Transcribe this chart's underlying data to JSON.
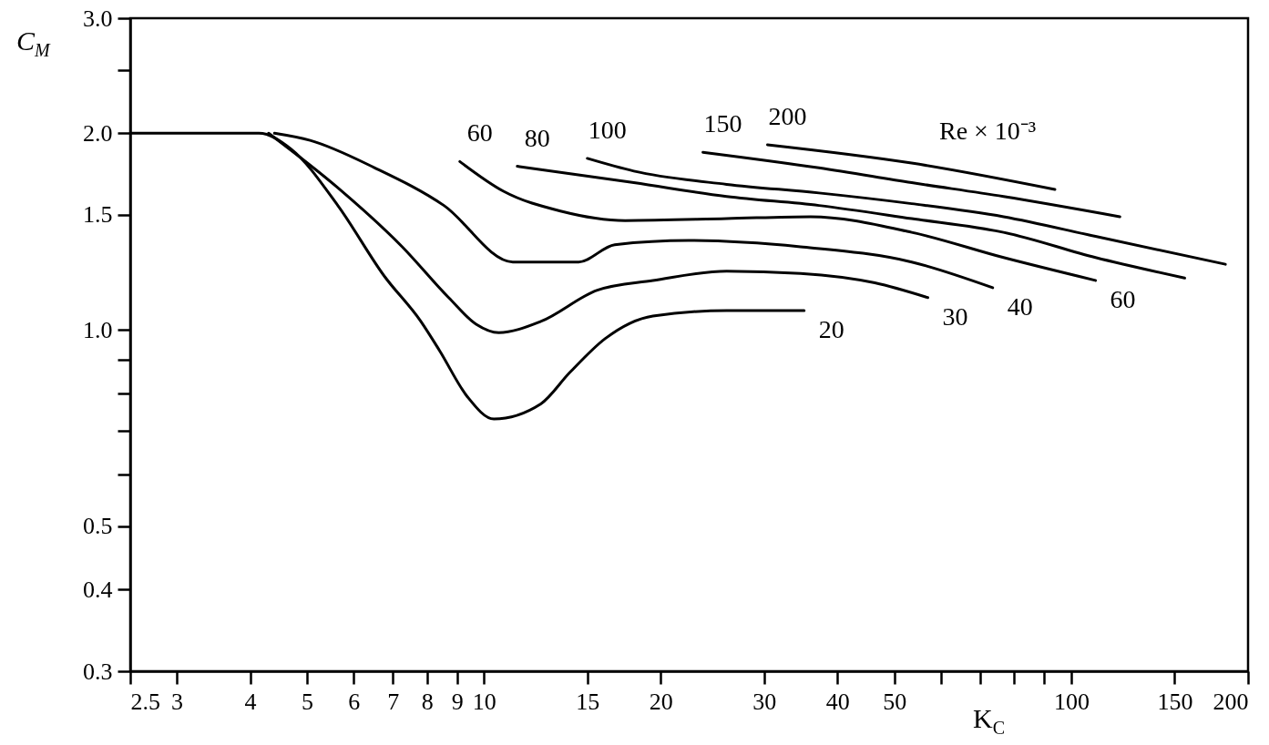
{
  "chart_data": {
    "type": "line",
    "xlabel": "K$_{C}$",
    "ylabel": "C$_{M}$",
    "legend_title": "Re × 10⁻³",
    "log": "xy",
    "grid": false,
    "marker": "none",
    "line_style": "solid",
    "xlim": [
      2.5,
      200
    ],
    "ylim": [
      0.3,
      3.0
    ],
    "xticks": [
      2.5,
      3,
      4,
      5,
      6,
      7,
      8,
      9,
      10,
      15,
      20,
      30,
      40,
      50,
      {
        "value": 60,
        "label": null
      },
      {
        "value": 70,
        "label": null
      },
      {
        "value": 80,
        "label": null
      },
      {
        "value": 90,
        "label": null
      },
      100,
      150,
      200
    ],
    "yticks": [
      {
        "value": 0.3,
        "label": "0.3"
      },
      {
        "value": 0.4,
        "label": "0.4"
      },
      {
        "value": 0.5,
        "label": "0.5"
      },
      {
        "value": 0.6,
        "label": null
      },
      {
        "value": 0.7,
        "label": null
      },
      {
        "value": 0.8,
        "label": null
      },
      {
        "value": 0.9,
        "label": null
      },
      {
        "value": 1,
        "label": "1.0"
      },
      {
        "value": 1.5,
        "label": "1.5"
      },
      {
        "value": 2,
        "label": "2.0"
      },
      {
        "value": 2.5,
        "label": null
      },
      {
        "value": 3,
        "label": "3.0"
      }
    ],
    "series": [
      {
        "name": "20",
        "color": "#000000",
        "x": [
          2.5,
          4.14,
          4.7,
          5.64,
          6.76,
          7.81,
          8.4,
          9.37,
          10.4,
          12.5,
          14.0,
          16.1,
          19.4,
          25.9,
          35.1
        ],
        "values": [
          2.0,
          2.0,
          1.89,
          1.55,
          1.21,
          1.03,
          0.93,
          0.79,
          0.73,
          0.77,
          0.86,
          0.97,
          1.05,
          1.07,
          1.07
        ]
      },
      {
        "name": "30",
        "color": "#000000",
        "x": [
          4.3,
          5.64,
          7.26,
          8.71,
          9.7,
          10.6,
          12.5,
          15.6,
          19.4,
          25.9,
          34.6,
          46.3,
          57.0
        ],
        "values": [
          2.0,
          1.65,
          1.34,
          1.12,
          1.02,
          0.99,
          1.03,
          1.15,
          1.19,
          1.23,
          1.22,
          1.18,
          1.12
        ]
      },
      {
        "name": "40",
        "color": "#000000",
        "x": [
          4.4,
          5.06,
          6.52,
          8.55,
          11.2,
          14.5,
          16.7,
          22.3,
          34.6,
          53.5,
          73.5
        ],
        "values": [
          2.0,
          1.95,
          1.77,
          1.55,
          1.27,
          1.27,
          1.35,
          1.37,
          1.34,
          1.27,
          1.16
        ]
      },
      {
        "name": "60",
        "color": "#000000",
        "x": [
          9.1,
          10.8,
          13.5,
          17.4,
          25.9,
          36.0,
          53.5,
          76.7,
          110
        ],
        "values": [
          1.81,
          1.63,
          1.52,
          1.47,
          1.48,
          1.49,
          1.41,
          1.29,
          1.19
        ]
      },
      {
        "name": "80",
        "color": "#000000",
        "x": [
          11.4,
          18.0,
          25.9,
          37.2,
          53.5,
          76.7,
          110,
          156
        ],
        "values": [
          1.78,
          1.68,
          1.6,
          1.55,
          1.48,
          1.41,
          1.29,
          1.2
        ]
      },
      {
        "name": "100",
        "color": "#000000",
        "x": [
          15.0,
          18.0,
          25.9,
          37.2,
          53.5,
          76.7,
          110,
          183
        ],
        "values": [
          1.83,
          1.75,
          1.67,
          1.62,
          1.56,
          1.49,
          1.39,
          1.26
        ]
      },
      {
        "name": "150",
        "color": "#000000",
        "x": [
          23.6,
          37.2,
          53.5,
          76.7,
          121
        ],
        "values": [
          1.87,
          1.77,
          1.68,
          1.6,
          1.49
        ]
      },
      {
        "name": "200",
        "color": "#000000",
        "x": [
          30.4,
          53.5,
          93.8
        ],
        "values": [
          1.92,
          1.8,
          1.64
        ]
      }
    ]
  }
}
